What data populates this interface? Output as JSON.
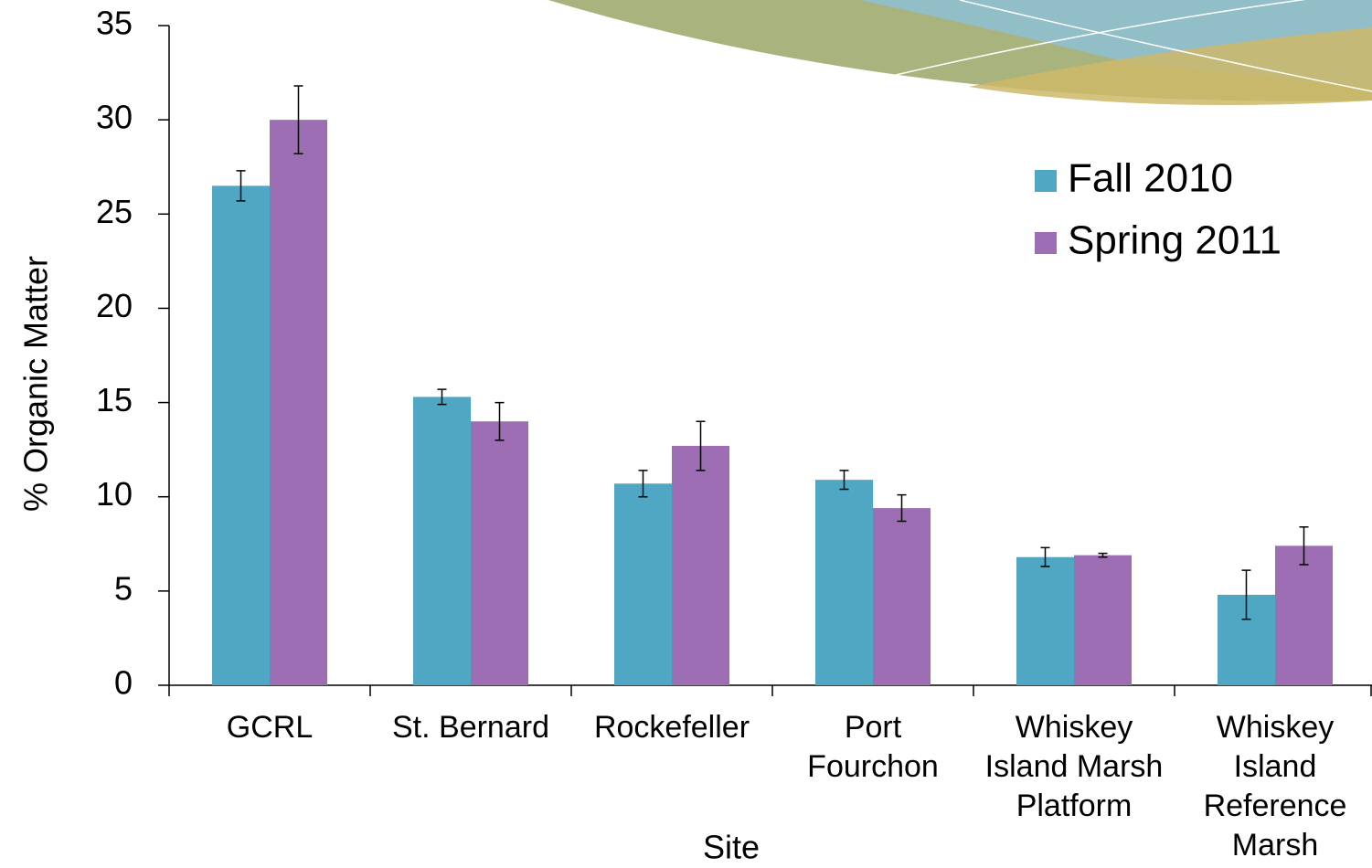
{
  "chart_data": {
    "type": "bar",
    "x_label": "Site",
    "y_label": "% Organic Matter",
    "categories": [
      "GCRL",
      "St. Bernard",
      "Rockefeller",
      "Port\nFourchon",
      "Whiskey\nIsland Marsh\nPlatform",
      "Whiskey\nIsland\nReference\nMarsh"
    ],
    "series": [
      {
        "name": "Fall 2010",
        "color": "#4fa7c3",
        "values": [
          26.5,
          15.3,
          10.7,
          10.9,
          6.8,
          4.8
        ],
        "errors": [
          0.8,
          0.4,
          0.7,
          0.5,
          0.5,
          1.3
        ]
      },
      {
        "name": "Spring 2011",
        "color": "#9e6eb4",
        "values": [
          30.0,
          14.0,
          12.7,
          9.4,
          6.9,
          7.4
        ],
        "errors": [
          1.8,
          1.0,
          1.3,
          0.7,
          0.1,
          1.0
        ]
      }
    ],
    "ylim": [
      0,
      35
    ],
    "yticks": [
      0,
      5,
      10,
      15,
      20,
      25,
      30,
      35
    ],
    "legend": "upper right"
  }
}
